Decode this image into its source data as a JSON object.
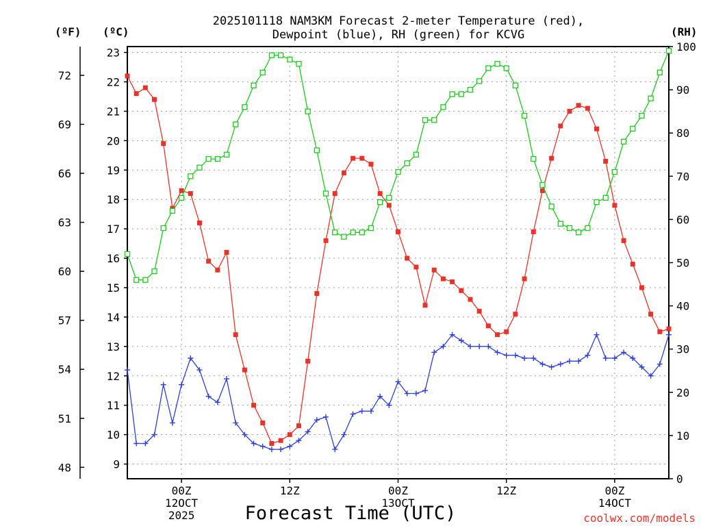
{
  "chart_data": {
    "type": "line",
    "title_line1": "2025101118 NAM3KM Forecast 2-meter Temperature (red),",
    "title_line2": "Dewpoint (blue), RH (green) for KCVG",
    "xlabel": "Forecast Time (UTC)",
    "credit": "coolwx.com/models",
    "units": {
      "fahrenheit": "(ºF)",
      "celsius": "(ºC)",
      "rh": "(RH)"
    },
    "x_range_hours": [
      0,
      60
    ],
    "y_celsius_range": [
      8.5,
      23.2
    ],
    "y_rh_range": [
      0,
      100
    ],
    "y_celsius_ticks": [
      "9",
      "10",
      "11",
      "12",
      "13",
      "14",
      "15",
      "16",
      "17",
      "18",
      "19",
      "20",
      "21",
      "22",
      "23"
    ],
    "y_fahrenheit_ticks": [
      "48",
      "51",
      "54",
      "57",
      "60",
      "63",
      "66",
      "69",
      "72"
    ],
    "y_rh_ticks": [
      "0",
      "10",
      "20",
      "30",
      "40",
      "50",
      "60",
      "70",
      "80",
      "90",
      "100"
    ],
    "x_ticks": [
      {
        "hour": 6,
        "line1": "00Z",
        "line2": "12OCT",
        "line3": "2025"
      },
      {
        "hour": 18,
        "line1": "12Z",
        "line2": "",
        "line3": ""
      },
      {
        "hour": 30,
        "line1": "00Z",
        "line2": "13OCT",
        "line3": ""
      },
      {
        "hour": 42,
        "line1": "12Z",
        "line2": "",
        "line3": ""
      },
      {
        "hour": 54,
        "line1": "00Z",
        "line2": "14OCT",
        "line3": ""
      }
    ],
    "series": [
      {
        "name": "Temperature",
        "axis": "celsius",
        "color": "#e8332a",
        "marker": "filled-square",
        "values": [
          22.2,
          21.6,
          21.8,
          21.4,
          19.9,
          17.7,
          18.3,
          18.2,
          17.2,
          15.9,
          15.6,
          16.2,
          13.4,
          12.2,
          11.0,
          10.4,
          9.7,
          9.8,
          10.0,
          10.3,
          12.5,
          14.8,
          16.6,
          18.2,
          18.9,
          19.4,
          19.4,
          19.2,
          18.2,
          17.8,
          16.9,
          16.0,
          15.7,
          14.4,
          15.6,
          15.3,
          15.2,
          14.9,
          14.6,
          14.2,
          13.7,
          13.4,
          13.5,
          14.1,
          15.3,
          16.9,
          18.3,
          19.4,
          20.5,
          21.0,
          21.2,
          21.1,
          20.4,
          19.3,
          17.8,
          16.6,
          15.8,
          15.0,
          14.1,
          13.5,
          13.6
        ]
      },
      {
        "name": "Dewpoint",
        "axis": "celsius",
        "color": "#2c3fd8",
        "marker": "plus",
        "values": [
          12.2,
          9.7,
          9.7,
          10.0,
          11.7,
          10.4,
          11.7,
          12.6,
          12.2,
          11.3,
          11.1,
          11.9,
          10.4,
          10.0,
          9.7,
          9.6,
          9.5,
          9.5,
          9.6,
          9.8,
          10.1,
          10.5,
          10.6,
          9.5,
          10.0,
          10.7,
          10.8,
          10.8,
          11.3,
          11.0,
          11.8,
          11.4,
          11.4,
          11.5,
          12.8,
          13.0,
          13.4,
          13.2,
          13.0,
          13.0,
          13.0,
          12.8,
          12.7,
          12.7,
          12.6,
          12.6,
          12.4,
          12.3,
          12.4,
          12.5,
          12.5,
          12.7,
          13.4,
          12.6,
          12.6,
          12.8,
          12.6,
          12.3,
          12.0,
          12.4,
          13.4
        ]
      },
      {
        "name": "RH",
        "axis": "rh",
        "color": "#1ec81e",
        "marker": "open-square",
        "values": [
          52,
          46,
          46,
          48,
          58,
          62,
          65,
          70,
          72,
          74,
          74,
          75,
          82,
          86,
          91,
          94,
          98,
          98,
          97,
          96,
          85,
          76,
          66,
          57,
          56,
          57,
          57,
          58,
          64,
          65,
          71,
          73,
          75,
          83,
          83,
          86,
          89,
          89,
          90,
          92,
          95,
          96,
          95,
          91,
          84,
          74,
          68,
          63,
          59,
          58,
          57,
          58,
          64,
          65,
          71,
          78,
          81,
          84,
          88,
          94,
          99
        ]
      }
    ]
  }
}
